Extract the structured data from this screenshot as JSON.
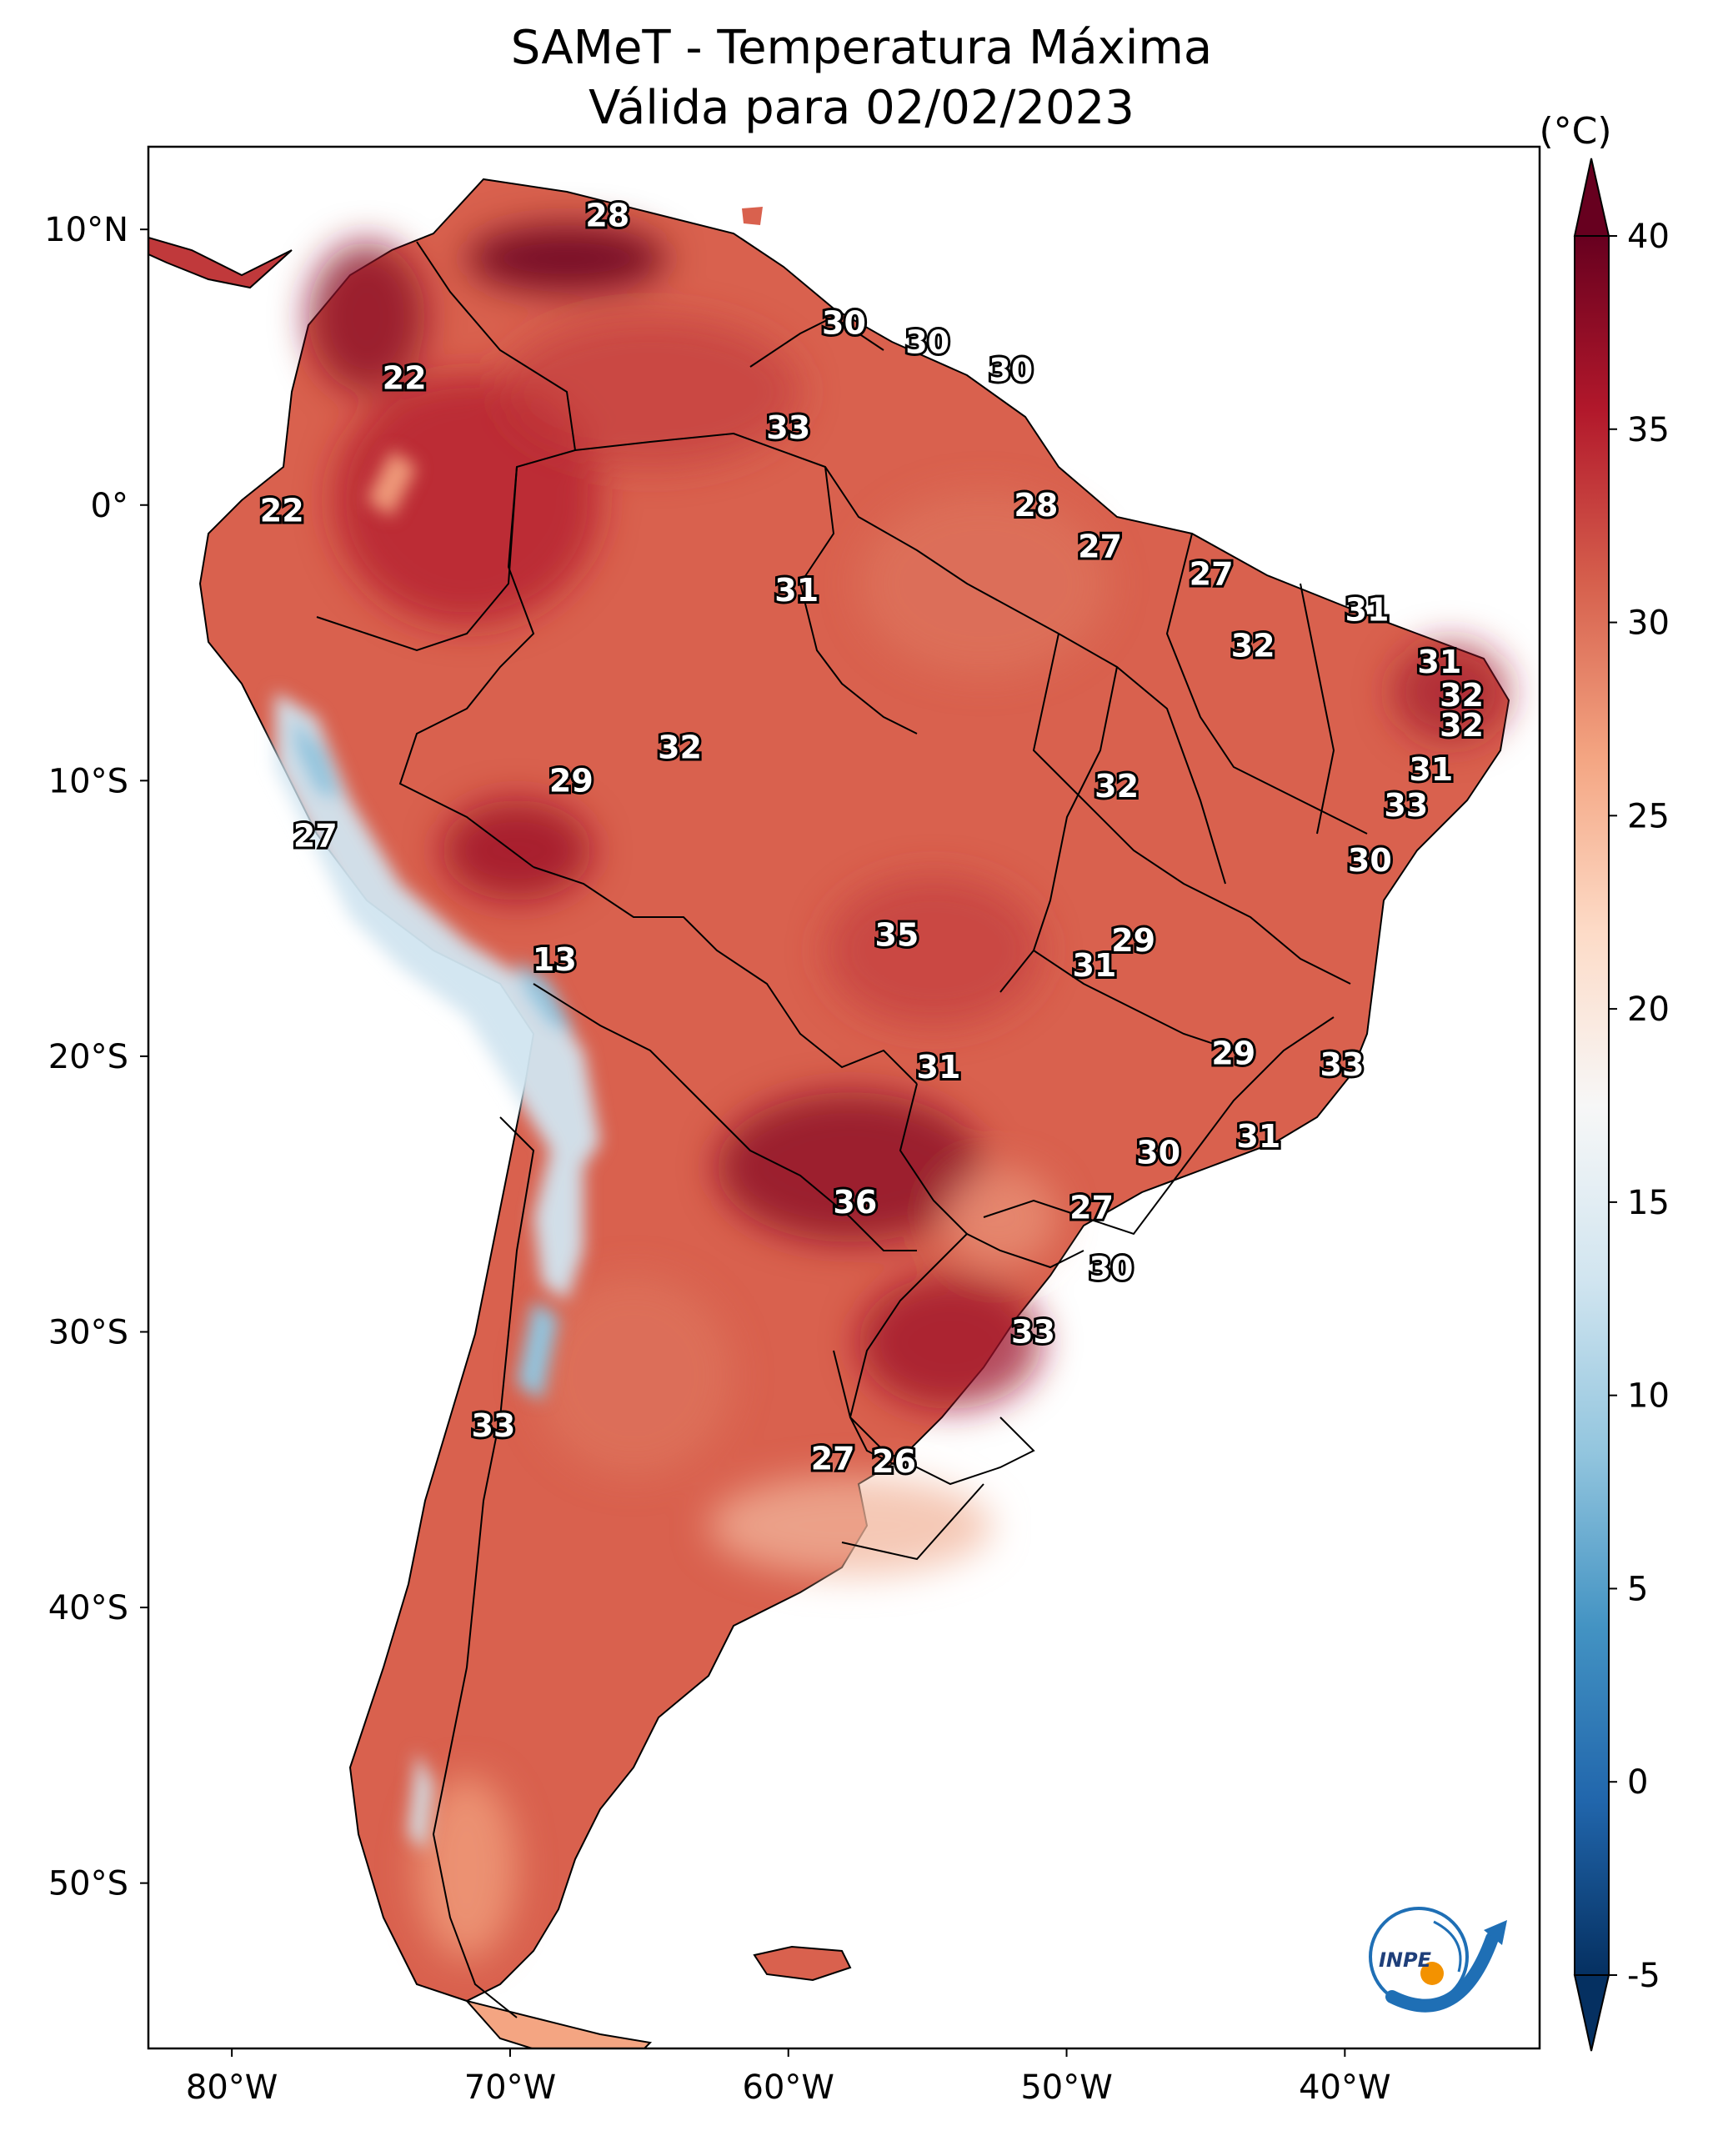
{
  "title": {
    "line1": "SAMeT - Temperatura Máxima",
    "line2": "Válida para 02/02/2023"
  },
  "map": {
    "lon_range": [
      -83,
      -33
    ],
    "lat_range": [
      -56,
      13
    ],
    "longitude_ticks": [
      {
        "lon": -80,
        "label": "80°W"
      },
      {
        "lon": -70,
        "label": "70°W"
      },
      {
        "lon": -60,
        "label": "60°W"
      },
      {
        "lon": -50,
        "label": "50°W"
      },
      {
        "lon": -40,
        "label": "40°W"
      }
    ],
    "latitude_ticks": [
      {
        "lat": 10,
        "label": "10°N"
      },
      {
        "lat": 0,
        "label": "0°"
      },
      {
        "lat": -10,
        "label": "10°S"
      },
      {
        "lat": -20,
        "label": "20°S"
      },
      {
        "lat": -30,
        "label": "30°S"
      },
      {
        "lat": -40,
        "label": "40°S"
      },
      {
        "lat": -50,
        "label": "50°S"
      }
    ]
  },
  "chart_data": {
    "type": "heatmap",
    "title": "SAMeT - Temperatura Máxima / Válida para 02/02/2023",
    "variable": "Temperatura Máxima",
    "units": "(°C)",
    "colorbar": {
      "min": -5,
      "max": 40,
      "ticks": [
        -5,
        0,
        5,
        10,
        15,
        20,
        25,
        30,
        35,
        40
      ],
      "extend": "both",
      "colormap": "RdBu_r",
      "stops": [
        "#053061",
        "#2166ac",
        "#4393c3",
        "#92c5de",
        "#d1e5f0",
        "#f7f7f7",
        "#fddbc7",
        "#f4a582",
        "#d6604d",
        "#b2182b",
        "#67001f"
      ]
    },
    "station_values": [
      {
        "lon": -66.5,
        "lat": 10.5,
        "value": "28"
      },
      {
        "lon": -58.0,
        "lat": 6.6,
        "value": "30"
      },
      {
        "lon": -55.0,
        "lat": 5.9,
        "value": "30"
      },
      {
        "lon": -52.0,
        "lat": 4.9,
        "value": "30"
      },
      {
        "lon": -73.8,
        "lat": 4.6,
        "value": "22"
      },
      {
        "lon": -60.0,
        "lat": 2.8,
        "value": "33"
      },
      {
        "lon": -78.2,
        "lat": -0.2,
        "value": "22"
      },
      {
        "lon": -51.1,
        "lat": 0.0,
        "value": "28"
      },
      {
        "lon": -48.8,
        "lat": -1.5,
        "value": "27"
      },
      {
        "lon": -44.8,
        "lat": -2.5,
        "value": "27"
      },
      {
        "lon": -59.7,
        "lat": -3.1,
        "value": "31"
      },
      {
        "lon": -39.2,
        "lat": -3.8,
        "value": "31"
      },
      {
        "lon": -43.3,
        "lat": -5.1,
        "value": "32"
      },
      {
        "lon": -36.6,
        "lat": -5.7,
        "value": "31"
      },
      {
        "lon": -35.8,
        "lat": -6.9,
        "value": "32"
      },
      {
        "lon": -35.8,
        "lat": -8.0,
        "value": "32"
      },
      {
        "lon": -63.9,
        "lat": -8.8,
        "value": "32"
      },
      {
        "lon": -36.9,
        "lat": -9.6,
        "value": "31"
      },
      {
        "lon": -67.8,
        "lat": -10.0,
        "value": "29"
      },
      {
        "lon": -48.2,
        "lat": -10.2,
        "value": "32"
      },
      {
        "lon": -37.8,
        "lat": -10.9,
        "value": "33"
      },
      {
        "lon": -77.0,
        "lat": -12.0,
        "value": "27"
      },
      {
        "lon": -39.1,
        "lat": -12.9,
        "value": "30"
      },
      {
        "lon": -56.1,
        "lat": -15.6,
        "value": "35"
      },
      {
        "lon": -47.6,
        "lat": -15.8,
        "value": "29"
      },
      {
        "lon": -49.0,
        "lat": -16.7,
        "value": "31"
      },
      {
        "lon": -68.4,
        "lat": -16.5,
        "value": "13"
      },
      {
        "lon": -44.0,
        "lat": -19.9,
        "value": "29"
      },
      {
        "lon": -54.6,
        "lat": -20.4,
        "value": "31"
      },
      {
        "lon": -40.1,
        "lat": -20.3,
        "value": "33"
      },
      {
        "lon": -43.1,
        "lat": -22.9,
        "value": "31"
      },
      {
        "lon": -46.7,
        "lat": -23.5,
        "value": "30"
      },
      {
        "lon": -57.6,
        "lat": -25.3,
        "value": "36"
      },
      {
        "lon": -49.1,
        "lat": -25.5,
        "value": "27"
      },
      {
        "lon": -48.4,
        "lat": -27.7,
        "value": "30"
      },
      {
        "lon": -51.2,
        "lat": -30.0,
        "value": "33"
      },
      {
        "lon": -70.6,
        "lat": -33.4,
        "value": "33"
      },
      {
        "lon": -58.4,
        "lat": -34.6,
        "value": "27"
      },
      {
        "lon": -56.2,
        "lat": -34.7,
        "value": "26"
      }
    ]
  },
  "logo": {
    "text": "INPE"
  }
}
